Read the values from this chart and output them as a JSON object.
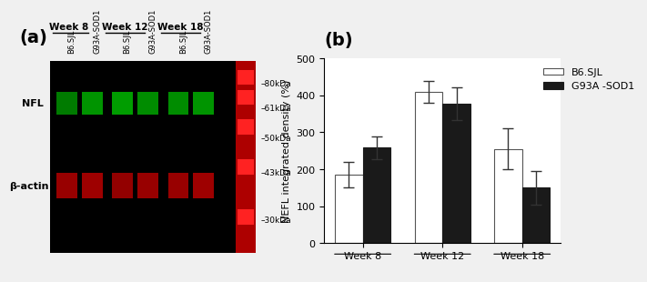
{
  "panel_b": {
    "title": "(b)",
    "groups": [
      "Week 8",
      "Week 12",
      "Week 18"
    ],
    "b6sjl_values": [
      185,
      410,
      255
    ],
    "b6sjl_errors": [
      35,
      30,
      55
    ],
    "g93a_values": [
      258,
      378,
      150
    ],
    "g93a_errors": [
      30,
      45,
      45
    ],
    "ylabel": "NEFL integrated density (%)",
    "ylim": [
      0,
      500
    ],
    "yticks": [
      0,
      100,
      200,
      300,
      400,
      500
    ],
    "bar_width": 0.35,
    "b6sjl_color": "#ffffff",
    "b6sjl_edgecolor": "#555555",
    "g93a_color": "#1a1a1a",
    "g93a_edgecolor": "#1a1a1a",
    "legend_b6sjl": "B6.SJL",
    "legend_g93a": "G93A -SOD1",
    "bg_color": "#ffffff",
    "error_cap_size": 4,
    "error_color": "#333333",
    "title_fontsize": 16,
    "tick_fontsize": 8,
    "label_fontsize": 8,
    "legend_fontsize": 8
  },
  "panel_a": {
    "title": "(a)",
    "week_labels": [
      "Week 8",
      "Week 12",
      "Week 18"
    ],
    "col_labels": [
      "B6.SJL",
      "G93A-SOD1",
      "B6.SJL",
      "G93A-SOD1",
      "B6.SJL",
      "G93A-SOD1"
    ],
    "row_labels": [
      "NFL",
      "β-actin"
    ],
    "marker_labels": [
      "80kDa",
      "61kDa",
      "50kDa",
      "43kDa",
      "30kDa"
    ]
  }
}
